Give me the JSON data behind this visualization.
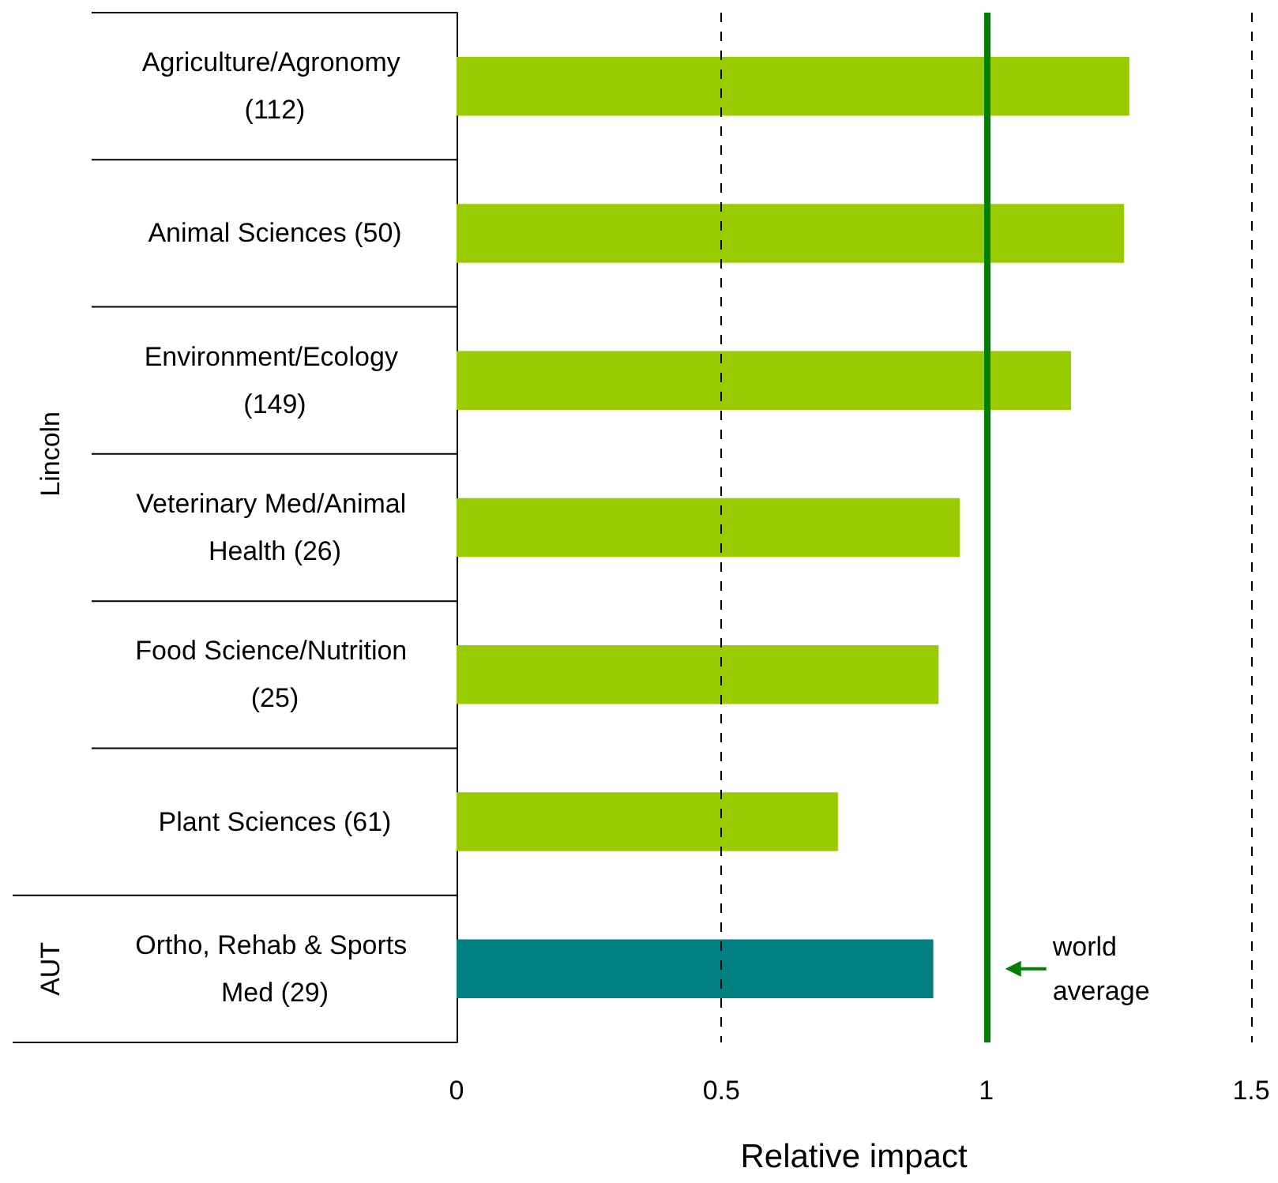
{
  "chart_data": {
    "type": "bar",
    "orientation": "horizontal",
    "xlabel": "Relative impact",
    "categories": [
      "Agriculture/Agronomy (112)",
      "Animal Sciences (50)",
      "Environment/Ecology (149)",
      "Veterinary Med/Animal Health (26)",
      "Food Science/Nutrition (25)",
      "Plant Sciences (61)",
      "Ortho, Rehab & Sports Med (29)"
    ],
    "values": [
      1.27,
      1.26,
      1.16,
      0.95,
      0.91,
      0.72,
      0.9
    ],
    "colors": [
      "#99cc00",
      "#99cc00",
      "#99cc00",
      "#99cc00",
      "#99cc00",
      "#99cc00",
      "#008080"
    ],
    "xlim": [
      0,
      1.5
    ],
    "xticks": [
      0,
      0.5,
      1,
      1.5
    ],
    "ref_lines": [
      {
        "axis": "x",
        "value": 1,
        "label": "world average",
        "color": "#008000"
      },
      {
        "axis": "x",
        "value": 0.5,
        "color": "#000000",
        "line_style": "dashed"
      },
      {
        "axis": "x",
        "value": 1.5,
        "color": "#000000",
        "line_style": "dashed"
      }
    ],
    "annotations": [
      "Lincoln",
      "AUT"
    ]
  }
}
